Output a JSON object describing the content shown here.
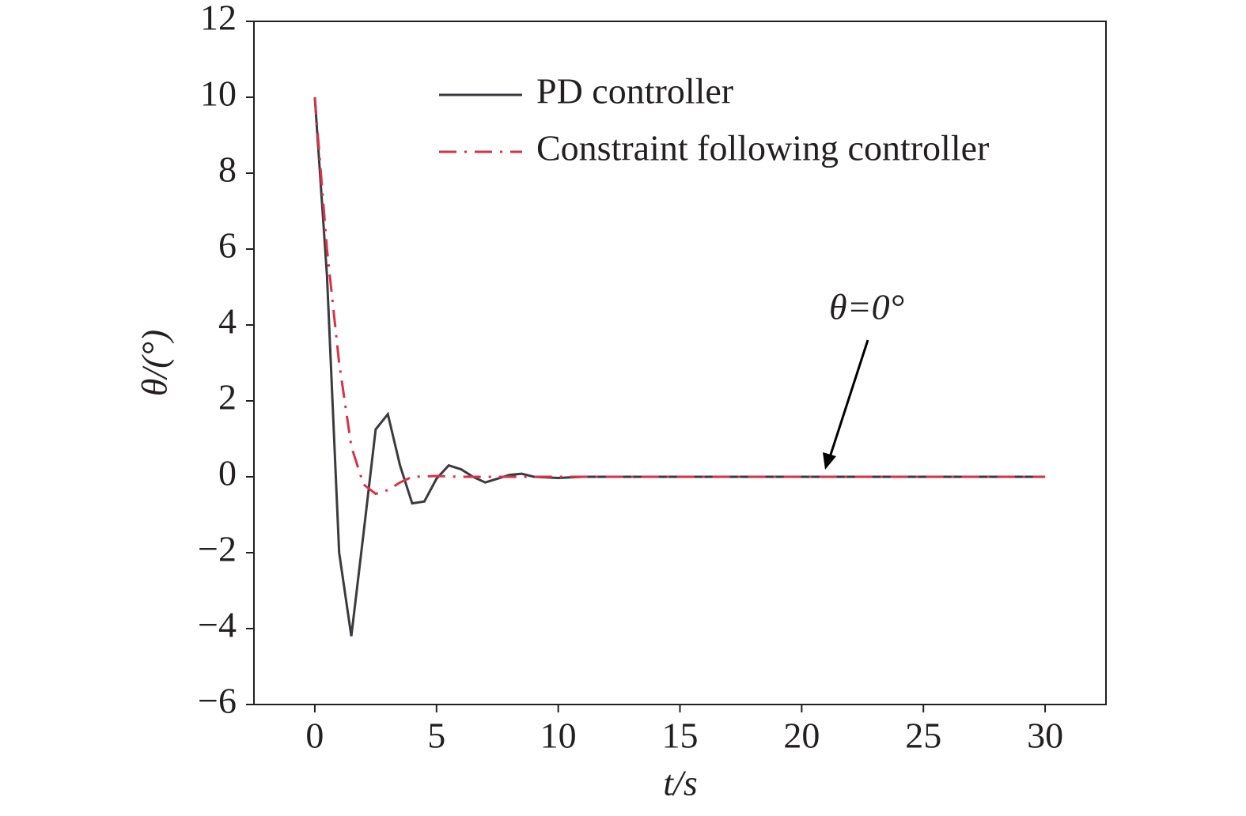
{
  "chart_data": {
    "type": "line",
    "x_label": "t/s",
    "y_label": "θ/(°)",
    "annotation": "θ=0°",
    "xlim": [
      -2.5,
      32.5
    ],
    "xticks": [
      0,
      5,
      10,
      15,
      20,
      25,
      30
    ],
    "ylim": [
      -6,
      12
    ],
    "yticks": [
      {
        "value": -6,
        "label": "−6"
      },
      {
        "value": -4,
        "label": "−4"
      },
      {
        "value": -2,
        "label": "−2"
      },
      0,
      2,
      4,
      6,
      8,
      10,
      12
    ],
    "legend": "upper right",
    "grid": false,
    "series": [
      {
        "name": "PD controller",
        "color": "#3a3a40",
        "style": "solid",
        "x": [
          0,
          0.5,
          1,
          1.5,
          2,
          2.5,
          3,
          3.5,
          4,
          4.5,
          5,
          5.5,
          6,
          6.5,
          7,
          7.5,
          8,
          8.5,
          9,
          10,
          11,
          12,
          15,
          20,
          25,
          30
        ],
        "values": [
          10,
          5.3,
          -2,
          -4.2,
          -1.5,
          1.25,
          1.65,
          0.3,
          -0.7,
          -0.65,
          -0.05,
          0.3,
          0.2,
          0,
          -0.15,
          -0.05,
          0.05,
          0.08,
          0,
          -0.03,
          0,
          0,
          0,
          0,
          0,
          0
        ]
      },
      {
        "name": "Constraint following controller",
        "color": "#d6324a",
        "style": "dashdot",
        "x": [
          0,
          0.5,
          1,
          1.5,
          2,
          2.5,
          3,
          3.5,
          4,
          5,
          6,
          10,
          20,
          30
        ],
        "values": [
          10,
          6,
          3,
          0.8,
          -0.2,
          -0.45,
          -0.35,
          -0.15,
          0,
          0.02,
          0,
          0,
          0,
          0
        ]
      }
    ]
  }
}
